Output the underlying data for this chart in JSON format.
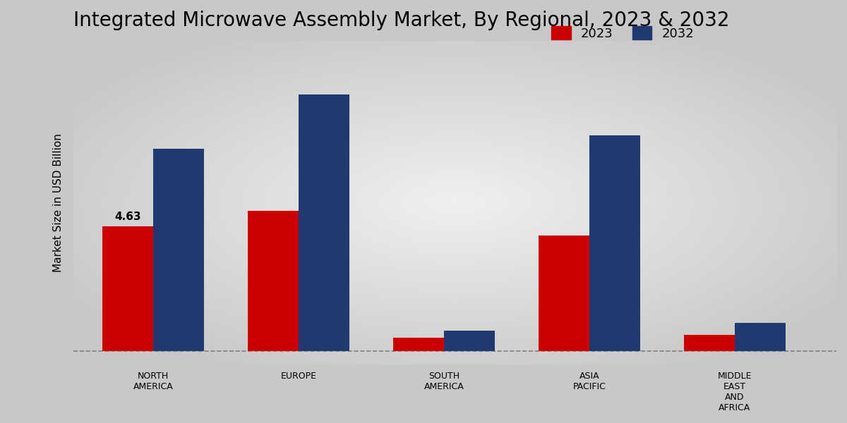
{
  "title": "Integrated Microwave Assembly Market, By Regional, 2023 & 2032",
  "ylabel": "Market Size in USD Billion",
  "categories": [
    "NORTH\nAMERICA",
    "EUROPE",
    "SOUTH\nAMERICA",
    "ASIA\nPACIFIC",
    "MIDDLE\nEAST\nAND\nAFRICA"
  ],
  "values_2023": [
    4.63,
    5.2,
    0.5,
    4.3,
    0.6
  ],
  "values_2032": [
    7.5,
    9.5,
    0.75,
    8.0,
    1.05
  ],
  "color_2023": "#cc0000",
  "color_2032": "#1e3a6e",
  "annotation_value": "4.63",
  "annotation_bar_index": 0,
  "bar_width": 0.35,
  "title_fontsize": 20,
  "label_fontsize": 11,
  "tick_fontsize": 9,
  "legend_fontsize": 13,
  "dashed_line_y": 0,
  "ylim": [
    -0.5,
    11.5
  ],
  "xlim": [
    -0.55,
    4.7
  ],
  "bg_outer": "#c8c8c8",
  "bg_inner": "#f0f0f0"
}
